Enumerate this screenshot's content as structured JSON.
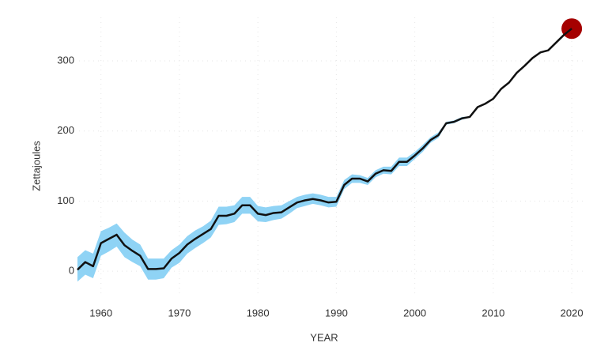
{
  "chart_data": {
    "type": "line",
    "x_label": "YEAR",
    "y_label": "Zettajoules",
    "x": [
      1957,
      1958,
      1959,
      1960,
      1961,
      1962,
      1963,
      1964,
      1965,
      1966,
      1967,
      1968,
      1969,
      1970,
      1971,
      1972,
      1973,
      1974,
      1975,
      1976,
      1977,
      1978,
      1979,
      1980,
      1981,
      1982,
      1983,
      1984,
      1985,
      1986,
      1987,
      1988,
      1989,
      1990,
      1991,
      1992,
      1993,
      1994,
      1995,
      1996,
      1997,
      1998,
      1999,
      2000,
      2001,
      2002,
      2003,
      2004,
      2005,
      2006,
      2007,
      2008,
      2009,
      2010,
      2011,
      2012,
      2013,
      2014,
      2015,
      2016,
      2017,
      2018,
      2019,
      2020
    ],
    "values": [
      2,
      13,
      7,
      40,
      46,
      52,
      37,
      29,
      22,
      3,
      3,
      4,
      18,
      26,
      38,
      46,
      53,
      60,
      79,
      79,
      82,
      94,
      94,
      82,
      80,
      83,
      84,
      91,
      98,
      101,
      103,
      101,
      98,
      99,
      123,
      132,
      132,
      128,
      139,
      144,
      143,
      156,
      156,
      165,
      175,
      187,
      194,
      211,
      213,
      218,
      220,
      234,
      239,
      246,
      260,
      269,
      283,
      293,
      304,
      312,
      315,
      326,
      337,
      346
    ],
    "lower": [
      -15,
      -5,
      -10,
      22,
      28,
      35,
      20,
      13,
      7,
      -12,
      -12,
      -10,
      5,
      12,
      25,
      33,
      40,
      48,
      66,
      67,
      70,
      82,
      82,
      71,
      70,
      73,
      75,
      82,
      90,
      93,
      96,
      94,
      91,
      92,
      117,
      126,
      126,
      123,
      134,
      139,
      138,
      150,
      150,
      160,
      170,
      183,
      190,
      209,
      211,
      216,
      219,
      233,
      238,
      245,
      259,
      268,
      282,
      292,
      303,
      311,
      314,
      325,
      336,
      345
    ],
    "upper": [
      20,
      30,
      25,
      57,
      62,
      68,
      55,
      45,
      38,
      18,
      18,
      18,
      30,
      38,
      50,
      58,
      64,
      72,
      92,
      92,
      94,
      106,
      106,
      93,
      91,
      93,
      94,
      100,
      106,
      109,
      111,
      109,
      106,
      106,
      130,
      138,
      137,
      133,
      144,
      149,
      149,
      162,
      162,
      170,
      180,
      191,
      198,
      213,
      215,
      220,
      221,
      235,
      240,
      247,
      261,
      270,
      284,
      294,
      305,
      313,
      316,
      327,
      338,
      347
    ],
    "color": "#111111",
    "band_color": "#8fd3f5",
    "highlight_color": "#a50000",
    "xlim": [
      1956,
      2021.5
    ],
    "ylim": [
      -45,
      362
    ],
    "xticks": [
      1960,
      1970,
      1980,
      1990,
      2000,
      2010,
      2020
    ],
    "yticks": [
      0,
      100,
      200,
      300
    ],
    "grid": true
  }
}
